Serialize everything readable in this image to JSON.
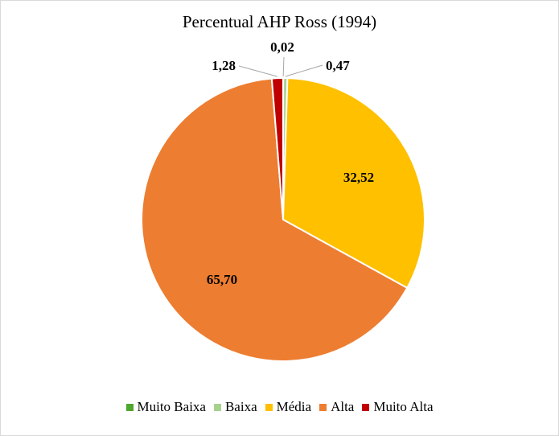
{
  "chart_data": {
    "type": "pie",
    "title": "Percentual AHP Ross (1994)",
    "categories": [
      "Muito Baixa",
      "Baixa",
      "Média",
      "Alta",
      "Muito Alta"
    ],
    "values": [
      0.02,
      0.47,
      32.52,
      65.7,
      1.28
    ],
    "data_labels": [
      "0,02",
      "0,47",
      "32,52",
      "65,70",
      "1,28"
    ],
    "colors": [
      "#4ea72e",
      "#a9d18e",
      "#ffc000",
      "#ed7d31",
      "#c00000"
    ],
    "start_angle": "top (12 o'clock)",
    "direction": "clockwise",
    "legend": "bottom"
  }
}
